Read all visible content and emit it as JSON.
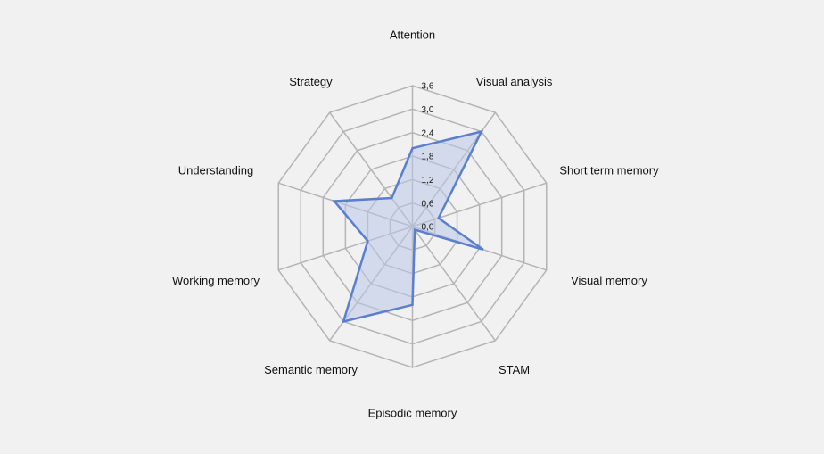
{
  "chart_data": {
    "type": "radar",
    "categories": [
      "Attention",
      "Visual analysis",
      "Short term memory",
      "Visual memory",
      "STAM",
      "Episodic memory",
      "Semantic memory",
      "Working memory",
      "Understanding",
      "Strategy"
    ],
    "series": [
      {
        "values": [
          2.0,
          3.0,
          0.7,
          1.9,
          0.1,
          2.0,
          3.0,
          1.2,
          2.1,
          0.9
        ]
      }
    ],
    "rlim": [
      0,
      3.6
    ],
    "ticks": [
      "0,0",
      "0,6",
      "1,2",
      "1,8",
      "2,4",
      "3,0",
      "3,6"
    ],
    "tick_values": [
      0,
      0.6,
      1.2,
      1.8,
      2.4,
      3.0,
      3.6
    ],
    "colors": {
      "series_line": "#5b7fcf",
      "series_fill": "#b9c6e6",
      "grid": "#b4b4b4",
      "background": "#f1f1f1"
    }
  }
}
